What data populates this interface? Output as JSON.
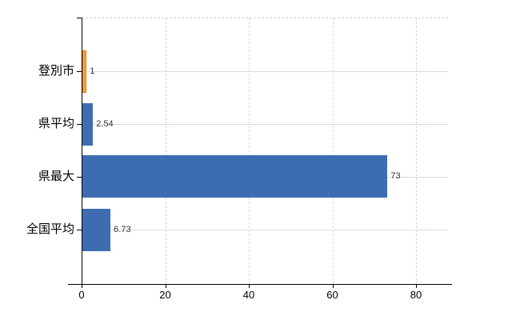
{
  "chart_data": {
    "type": "bar",
    "orientation": "horizontal",
    "title": "",
    "xlabel": "",
    "ylabel": "",
    "categories": [
      "登別市",
      "県平均",
      "県最大",
      "全国平均"
    ],
    "values": [
      1,
      2.54,
      73,
      6.73
    ],
    "value_labels": [
      "1",
      "2.54",
      "73",
      "6.73"
    ],
    "x_ticks": [
      0,
      20,
      40,
      60,
      80
    ],
    "x_tick_labels": [
      "0",
      "20",
      "40",
      "60",
      "80"
    ],
    "xlim": [
      0,
      87.7
    ],
    "grid": true,
    "legend": false,
    "bar_fill_colors": [
      "#f2a240",
      "#3d6db1",
      "#3d6db1",
      "#3d6db1"
    ],
    "bar_border_colors": [
      "#e0791d",
      "",
      "",
      ""
    ],
    "highlighted_category": "登別市"
  },
  "colors": {
    "background": "#ffffff",
    "axis": "#000000",
    "gridline_dashed": "#d2d7d2",
    "category_line": "#d9ded8",
    "highlight_bar": "#f2a240",
    "highlight_bar_border": "#e0791d",
    "default_bar": "#3d6db1",
    "value_label_text": "#333333",
    "tick_label_text": "#000000"
  }
}
